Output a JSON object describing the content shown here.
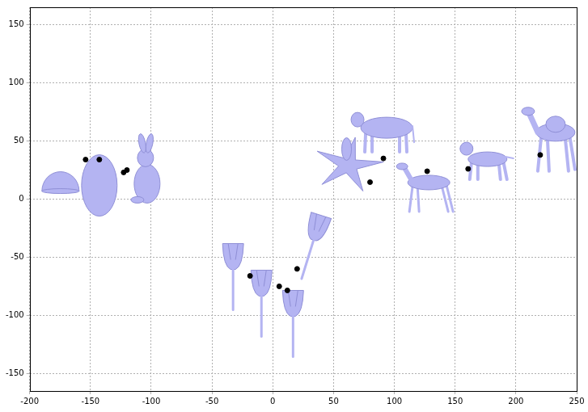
{
  "chart_data": {
    "type": "scatter",
    "x": [
      -154,
      -142.7,
      -122.7,
      -120,
      -18.7,
      5.3,
      12,
      20,
      80,
      91,
      127,
      160.7,
      220
    ],
    "values": [
      34,
      34,
      23,
      25,
      -66,
      -75,
      -78.5,
      -60,
      14.6,
      35,
      24,
      26,
      38
    ],
    "color": "#000000",
    "marker": "circle",
    "xlim": [
      -200,
      250
    ],
    "xticks": [
      -200,
      -150,
      -100,
      -50,
      0,
      50,
      100,
      150,
      200,
      250
    ],
    "ylim": [
      -165,
      165
    ],
    "yticks": [
      -150,
      -100,
      -50,
      0,
      50,
      100,
      150
    ],
    "grid": true
  }
}
